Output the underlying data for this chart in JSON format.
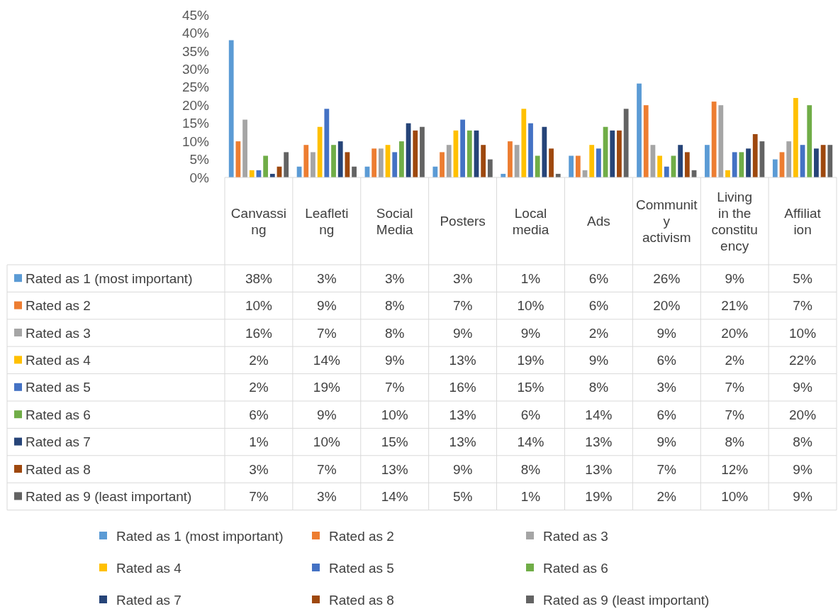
{
  "chart_data": {
    "type": "bar",
    "categories": [
      "Canvassing",
      "Leafleting",
      "Social Media",
      "Posters",
      "Local media",
      "Ads",
      "Community activism",
      "Living in the constituency",
      "Affiliation"
    ],
    "ylim": [
      0,
      45
    ],
    "yticks": [
      {
        "value": 0,
        "label": "0%"
      },
      {
        "value": 5,
        "label": "5%"
      },
      {
        "value": 10,
        "label": "10%"
      },
      {
        "value": 15,
        "label": "15%"
      },
      {
        "value": 20,
        "label": "20%"
      },
      {
        "value": 25,
        "label": "25%"
      },
      {
        "value": 30,
        "label": "30%"
      },
      {
        "value": 35,
        "label": "35%"
      },
      {
        "value": 40,
        "label": "40%"
      },
      {
        "value": 45,
        "label": "45%"
      }
    ],
    "grid": false,
    "legend": "bottom",
    "series": [
      {
        "name": "Rated as 1 (most important)",
        "color": "#5b9bd5",
        "values": [
          38,
          3,
          3,
          3,
          1,
          6,
          26,
          9,
          5
        ],
        "value_labels": [
          "38%",
          "3%",
          "3%",
          "3%",
          "1%",
          "6%",
          "26%",
          "9%",
          "5%"
        ]
      },
      {
        "name": "Rated as 2",
        "color": "#ed7d31",
        "values": [
          10,
          9,
          8,
          7,
          10,
          6,
          20,
          21,
          7
        ],
        "value_labels": [
          "10%",
          "9%",
          "8%",
          "7%",
          "10%",
          "6%",
          "20%",
          "21%",
          "7%"
        ]
      },
      {
        "name": "Rated as 3",
        "color": "#a5a5a5",
        "values": [
          16,
          7,
          8,
          9,
          9,
          2,
          9,
          20,
          10
        ],
        "value_labels": [
          "16%",
          "7%",
          "8%",
          "9%",
          "9%",
          "2%",
          "9%",
          "20%",
          "10%"
        ]
      },
      {
        "name": "Rated as 4",
        "color": "#ffc000",
        "values": [
          2,
          14,
          9,
          13,
          19,
          9,
          6,
          2,
          22
        ],
        "value_labels": [
          "2%",
          "14%",
          "9%",
          "13%",
          "19%",
          "9%",
          "6%",
          "2%",
          "22%"
        ]
      },
      {
        "name": "Rated as 5",
        "color": "#4472c4",
        "values": [
          2,
          19,
          7,
          16,
          15,
          8,
          3,
          7,
          9
        ],
        "value_labels": [
          "2%",
          "19%",
          "7%",
          "16%",
          "15%",
          "8%",
          "3%",
          "7%",
          "9%"
        ]
      },
      {
        "name": "Rated as 6",
        "color": "#70ad47",
        "values": [
          6,
          9,
          10,
          13,
          6,
          14,
          6,
          7,
          20
        ],
        "value_labels": [
          "6%",
          "9%",
          "10%",
          "13%",
          "6%",
          "14%",
          "6%",
          "7%",
          "20%"
        ]
      },
      {
        "name": "Rated as 7",
        "color": "#264478",
        "values": [
          1,
          10,
          15,
          13,
          14,
          13,
          9,
          8,
          8
        ],
        "value_labels": [
          "1%",
          "10%",
          "15%",
          "13%",
          "14%",
          "13%",
          "9%",
          "8%",
          "8%"
        ]
      },
      {
        "name": "Rated as 8",
        "color": "#9e480e",
        "values": [
          3,
          7,
          13,
          9,
          8,
          13,
          7,
          12,
          9
        ],
        "value_labels": [
          "3%",
          "7%",
          "13%",
          "9%",
          "8%",
          "13%",
          "7%",
          "12%",
          "9%"
        ]
      },
      {
        "name": "Rated as 9 (least important)",
        "color": "#636363",
        "values": [
          7,
          3,
          14,
          5,
          1,
          19,
          2,
          10,
          9
        ],
        "value_labels": [
          "7%",
          "3%",
          "14%",
          "5%",
          "1%",
          "19%",
          "2%",
          "10%",
          "9%"
        ]
      }
    ]
  }
}
